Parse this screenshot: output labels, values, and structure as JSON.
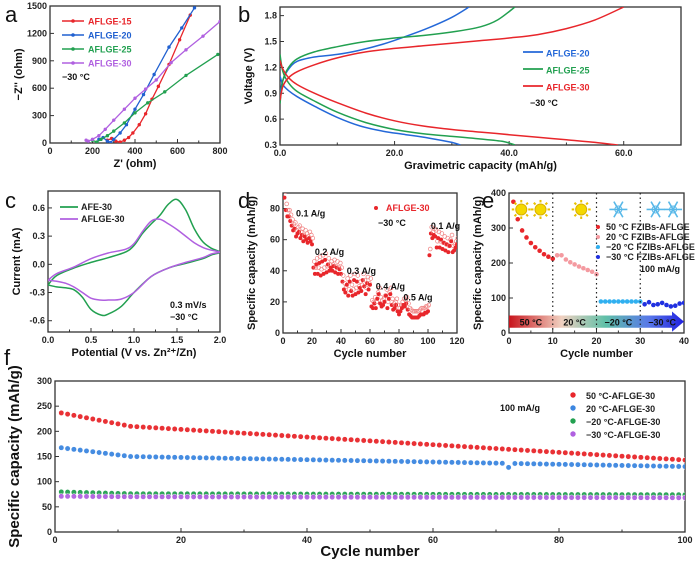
{
  "chart_data": [
    {
      "id": "a",
      "type": "line",
      "panel_label": "a",
      "xlabel": "Z' (ohm)",
      "ylabel": "−Z'' (ohm)",
      "xlim": [
        0,
        800
      ],
      "ylim": [
        0,
        1500
      ],
      "xticks": [
        0,
        200,
        400,
        600,
        800
      ],
      "yticks": [
        0,
        300,
        600,
        900,
        1200,
        1500
      ],
      "annotation": "−30 °C",
      "legend_position": "top-left",
      "series": [
        {
          "name": "AFLGE-15",
          "color": "#e8262b",
          "x": [
            270,
            290,
            310,
            330,
            350,
            370,
            390,
            420,
            450,
            480,
            510,
            560,
            610,
            660
          ],
          "y": [
            30,
            50,
            20,
            10,
            30,
            60,
            110,
            200,
            320,
            480,
            620,
            860,
            1130,
            1400
          ]
        },
        {
          "name": "AFLGE-20",
          "color": "#2060d0",
          "x": [
            230,
            250,
            270,
            285,
            300,
            330,
            360,
            400,
            440,
            490,
            560,
            620,
            680
          ],
          "y": [
            40,
            60,
            20,
            5,
            40,
            110,
            200,
            370,
            530,
            750,
            1050,
            1260,
            1480
          ]
        },
        {
          "name": "AFLGE-25",
          "color": "#22a050",
          "x": [
            200,
            220,
            240,
            270,
            300,
            350,
            400,
            460,
            540,
            640,
            790
          ],
          "y": [
            30,
            10,
            40,
            80,
            130,
            220,
            330,
            440,
            560,
            740,
            970
          ]
        },
        {
          "name": "AFLGE-30",
          "color": "#b060e0",
          "x": [
            170,
            180,
            200,
            230,
            260,
            300,
            350,
            400,
            450,
            500,
            570,
            640,
            720,
            800
          ],
          "y": [
            30,
            20,
            40,
            80,
            150,
            250,
            370,
            490,
            590,
            690,
            880,
            1020,
            1170,
            1330
          ]
        }
      ]
    },
    {
      "id": "b",
      "type": "line",
      "panel_label": "b",
      "xlabel": "Gravimetric capacity (mAh/g)",
      "ylabel": "Voltage (V)",
      "xlim": [
        0,
        70
      ],
      "ylim": [
        0.3,
        1.9
      ],
      "xticks": [
        0,
        20,
        40,
        60
      ],
      "yticks": [
        0.3,
        0.6,
        0.9,
        1.2,
        1.5,
        1.8
      ],
      "annotation": "−30 °C",
      "legend_position": "right",
      "series": [
        {
          "name": "AFLGE-20",
          "color": "#2468d8",
          "charge": {
            "x": [
              0,
              0.5,
              1.5,
              3,
              6,
              10,
              14,
              18,
              22,
              26,
              30,
              33
            ],
            "y": [
              0.9,
              1.05,
              1.18,
              1.27,
              1.32,
              1.35,
              1.4,
              1.47,
              1.56,
              1.66,
              1.78,
              1.9
            ]
          },
          "discharge": {
            "x": [
              0,
              0.5,
              1.5,
              3,
              6,
              10,
              14,
              18,
              22,
              26,
              30,
              31.5
            ],
            "y": [
              1.1,
              1.0,
              0.93,
              0.86,
              0.75,
              0.62,
              0.52,
              0.46,
              0.42,
              0.38,
              0.33,
              0.3
            ]
          }
        },
        {
          "name": "AFLGE-25",
          "color": "#22a050",
          "charge": {
            "x": [
              0,
              0.5,
              1.5,
              3,
              6,
              10,
              15,
              20,
              25,
              30,
              35,
              38,
              41
            ],
            "y": [
              0.78,
              1.05,
              1.2,
              1.3,
              1.38,
              1.44,
              1.5,
              1.54,
              1.57,
              1.61,
              1.67,
              1.75,
              1.9
            ]
          },
          "discharge": {
            "x": [
              0,
              0.5,
              1.5,
              3,
              6,
              10,
              15,
              20,
              25,
              30,
              35,
              39,
              41
            ],
            "y": [
              1.35,
              1.15,
              1.02,
              0.92,
              0.81,
              0.68,
              0.56,
              0.48,
              0.43,
              0.4,
              0.37,
              0.34,
              0.3
            ]
          }
        },
        {
          "name": "AFLGE-30",
          "color": "#e8262b",
          "charge": {
            "x": [
              0,
              0.5,
              1.5,
              3,
              6,
              10,
              15,
              20,
              25,
              30,
              35,
              40,
              45,
              50,
              55,
              60
            ],
            "y": [
              0.82,
              0.98,
              1.08,
              1.15,
              1.23,
              1.31,
              1.38,
              1.42,
              1.45,
              1.48,
              1.51,
              1.54,
              1.58,
              1.65,
              1.75,
              1.9
            ]
          },
          "discharge": {
            "x": [
              0,
              0.5,
              1.5,
              3,
              6,
              10,
              15,
              20,
              25,
              30,
              35,
              40,
              45,
              50,
              55,
              59
            ],
            "y": [
              1.28,
              1.18,
              1.08,
              1.0,
              0.9,
              0.79,
              0.67,
              0.58,
              0.52,
              0.48,
              0.45,
              0.42,
              0.39,
              0.36,
              0.33,
              0.3
            ]
          }
        }
      ]
    },
    {
      "id": "c",
      "type": "line",
      "panel_label": "c",
      "xlabel": "Potential (V vs. Zn²⁺/Zn)",
      "ylabel": "Current (mA)",
      "xlim": [
        0,
        2.0
      ],
      "ylim": [
        -0.72,
        0.78
      ],
      "xticks": [
        0.0,
        0.5,
        1.0,
        1.5,
        2.0
      ],
      "yticks": [
        -0.6,
        -0.3,
        0.0,
        0.3,
        0.6
      ],
      "annotation": [
        "0.3 mV/s",
        "−30 °C"
      ],
      "legend_position": "top-left",
      "series": [
        {
          "name": "AFE-30",
          "color": "#22a050",
          "x": [
            0,
            0.1,
            0.3,
            0.5,
            0.7,
            0.9,
            1.0,
            1.1,
            1.2,
            1.3,
            1.4,
            1.5,
            1.6,
            1.7,
            1.8,
            1.9,
            2.0,
            1.9,
            1.8,
            1.6,
            1.4,
            1.2,
            1.0,
            0.85,
            0.7,
            0.62,
            0.5,
            0.4,
            0.3,
            0.2,
            0.1,
            0.0
          ],
          "y": [
            -0.22,
            -0.12,
            -0.04,
            0.02,
            0.07,
            0.13,
            0.2,
            0.33,
            0.43,
            0.52,
            0.64,
            0.69,
            0.58,
            0.38,
            0.24,
            0.17,
            0.13,
            0.1,
            0.06,
            0.01,
            -0.04,
            -0.13,
            -0.3,
            -0.45,
            -0.53,
            -0.54,
            -0.48,
            -0.35,
            -0.27,
            -0.25,
            -0.24,
            -0.22
          ]
        },
        {
          "name": "AFLGE-30",
          "color": "#b060e0",
          "x": [
            0,
            0.1,
            0.3,
            0.5,
            0.7,
            0.9,
            1.0,
            1.1,
            1.2,
            1.3,
            1.4,
            1.5,
            1.6,
            1.7,
            1.8,
            1.9,
            2.0,
            1.9,
            1.8,
            1.6,
            1.4,
            1.2,
            1.0,
            0.85,
            0.7,
            0.6,
            0.5,
            0.4,
            0.3,
            0.2,
            0.1,
            0.0
          ],
          "y": [
            -0.17,
            -0.1,
            -0.03,
            0.06,
            0.12,
            0.16,
            0.22,
            0.35,
            0.46,
            0.48,
            0.43,
            0.37,
            0.3,
            0.23,
            0.18,
            0.15,
            0.13,
            0.11,
            0.07,
            0.02,
            -0.04,
            -0.13,
            -0.3,
            -0.37,
            -0.38,
            -0.38,
            -0.36,
            -0.3,
            -0.24,
            -0.2,
            -0.18,
            -0.17
          ]
        }
      ]
    },
    {
      "id": "d",
      "type": "scatter",
      "panel_label": "d",
      "xlabel": "Cycle number",
      "ylabel": "Specific capacity (mAh/g)",
      "xlim": [
        0,
        120
      ],
      "ylim": [
        0,
        90
      ],
      "xticks": [
        0,
        20,
        40,
        60,
        80,
        100,
        120
      ],
      "yticks": [
        0,
        20,
        40,
        60,
        80
      ],
      "legend_position": "top-center",
      "legend": "AFLGE-30",
      "annotation": "−30 °C",
      "rate_labels": [
        {
          "text": "0.1 A/g",
          "x": 9,
          "y": 75
        },
        {
          "text": "0.2 A/g",
          "x": 22,
          "y": 50
        },
        {
          "text": "0.3 A/g",
          "x": 44,
          "y": 38
        },
        {
          "text": "0.4 A/g",
          "x": 64,
          "y": 28
        },
        {
          "text": "0.5 A/g",
          "x": 83,
          "y": 21
        },
        {
          "text": "0.1 A/g",
          "x": 102,
          "y": 67
        }
      ],
      "series": [
        {
          "name": "AFLGE-30",
          "color": "#e8262b",
          "x": [
            1,
            2,
            3,
            4,
            5,
            6,
            7,
            8,
            9,
            10,
            11,
            12,
            13,
            14,
            15,
            16,
            17,
            18,
            19,
            20,
            21,
            22,
            23,
            24,
            25,
            26,
            27,
            28,
            29,
            30,
            31,
            32,
            33,
            34,
            35,
            36,
            37,
            38,
            39,
            40,
            41,
            42,
            43,
            44,
            45,
            46,
            47,
            48,
            49,
            50,
            51,
            52,
            53,
            54,
            55,
            56,
            57,
            58,
            59,
            60,
            61,
            62,
            63,
            64,
            65,
            66,
            67,
            68,
            69,
            70,
            71,
            72,
            73,
            74,
            75,
            76,
            77,
            78,
            79,
            80,
            81,
            82,
            83,
            84,
            85,
            86,
            87,
            88,
            89,
            90,
            91,
            92,
            93,
            94,
            95,
            96,
            97,
            98,
            99,
            100,
            101,
            102,
            103,
            104,
            105,
            106,
            107,
            108,
            109,
            110,
            111,
            112,
            113,
            114,
            115,
            116,
            117,
            118,
            119,
            120
          ],
          "y": [
            87,
            79,
            75,
            75,
            72,
            69,
            66,
            67,
            62,
            64,
            65,
            61,
            63,
            59,
            62,
            60,
            58,
            61,
            59,
            57,
            42,
            38,
            44,
            38,
            45,
            37,
            46,
            38,
            47,
            39,
            44,
            40,
            42,
            40,
            43,
            39,
            42,
            38,
            41,
            38,
            33,
            28,
            26,
            31,
            24,
            33,
            27,
            24,
            34,
            25,
            33,
            26,
            29,
            27,
            34,
            30,
            25,
            32,
            28,
            31,
            17,
            16,
            19,
            16,
            22,
            25,
            19,
            17,
            18,
            20,
            24,
            16,
            22,
            25,
            18,
            15,
            16,
            18,
            14,
            12,
            14,
            16,
            18,
            17,
            19,
            15,
            12,
            11,
            10,
            10,
            10,
            10,
            10,
            11,
            12,
            12,
            12,
            13,
            13,
            14,
            50,
            64,
            61,
            63,
            62,
            55,
            61,
            55,
            60,
            54,
            58,
            53,
            57,
            52,
            56,
            59,
            52,
            53,
            55,
            57
          ]
        }
      ]
    },
    {
      "id": "e",
      "type": "scatter",
      "panel_label": "e",
      "xlabel": "Cycle number",
      "ylabel": "Specific capacity (mAh/g)",
      "xlim": [
        0,
        40
      ],
      "ylim": [
        0,
        400
      ],
      "xticks": [
        0,
        10,
        20,
        30,
        40
      ],
      "yticks": [
        0,
        100,
        200,
        300,
        400
      ],
      "annotation": "100 mA/g",
      "legend_position": "right",
      "temperature_bar": [
        "50 °C",
        "20 °C",
        "−20 °C",
        "−30 °C"
      ],
      "icons": [
        "sun-icon",
        "sun-icon",
        "sun-icon",
        "snowflake-icon",
        "snowflake-icon",
        "snowflake-icon"
      ],
      "series": [
        {
          "name": "50 °C FZIBs-AFLGE",
          "color": "#e8262b",
          "x": [
            1,
            2,
            3,
            4,
            5,
            6,
            7,
            8,
            9,
            10
          ],
          "y": [
            375,
            325,
            293,
            273,
            257,
            245,
            235,
            225,
            218,
            212
          ]
        },
        {
          "name": "20 °C FZIBs-AFLGE",
          "color": "#f49aa0",
          "x": [
            11,
            12,
            13,
            14,
            15,
            16,
            17,
            18,
            19,
            20
          ],
          "y": [
            222,
            222,
            210,
            202,
            196,
            190,
            185,
            180,
            175,
            168
          ]
        },
        {
          "name": "−20 °C FZIBs-AFLGE",
          "color": "#30b0f0",
          "x": [
            21,
            22,
            23,
            24,
            25,
            26,
            27,
            28,
            29,
            30
          ],
          "y": [
            90,
            90,
            90,
            90,
            90,
            90,
            90,
            90,
            90,
            90
          ]
        },
        {
          "name": "−30 °C FZIBs-AFLGE",
          "color": "#2030e0",
          "x": [
            31,
            32,
            33,
            34,
            35,
            36,
            37,
            38,
            39,
            40
          ],
          "y": [
            82,
            88,
            80,
            82,
            86,
            80,
            76,
            78,
            84,
            86
          ]
        }
      ]
    },
    {
      "id": "f",
      "type": "scatter",
      "panel_label": "f",
      "xlabel": "Cycle number",
      "ylabel": "Specific capacity (mAh/g)",
      "xlim": [
        0,
        100
      ],
      "ylim": [
        0,
        300
      ],
      "xticks": [
        0,
        20,
        40,
        60,
        80,
        100
      ],
      "yticks": [
        0,
        50,
        100,
        150,
        200,
        250,
        300
      ],
      "annotation": "100 mA/g",
      "legend_position": "top-right",
      "series": [
        {
          "name": "50 °C-AFLGE-30",
          "color": "#e8262b",
          "start": 239,
          "mid": 210,
          "end": 143
        },
        {
          "name": "20 °C-AFLGE-30",
          "color": "#3c86e0",
          "start": 169,
          "mid": 150,
          "end": 130
        },
        {
          "name": "−20 °C-AFLGE-30",
          "color": "#22a050",
          "start": 80,
          "mid": 76,
          "end": 74
        },
        {
          "name": "−30 °C-AFLGE-30",
          "color": "#b060e0",
          "start": 71,
          "mid": 70,
          "end": 68
        }
      ]
    }
  ]
}
